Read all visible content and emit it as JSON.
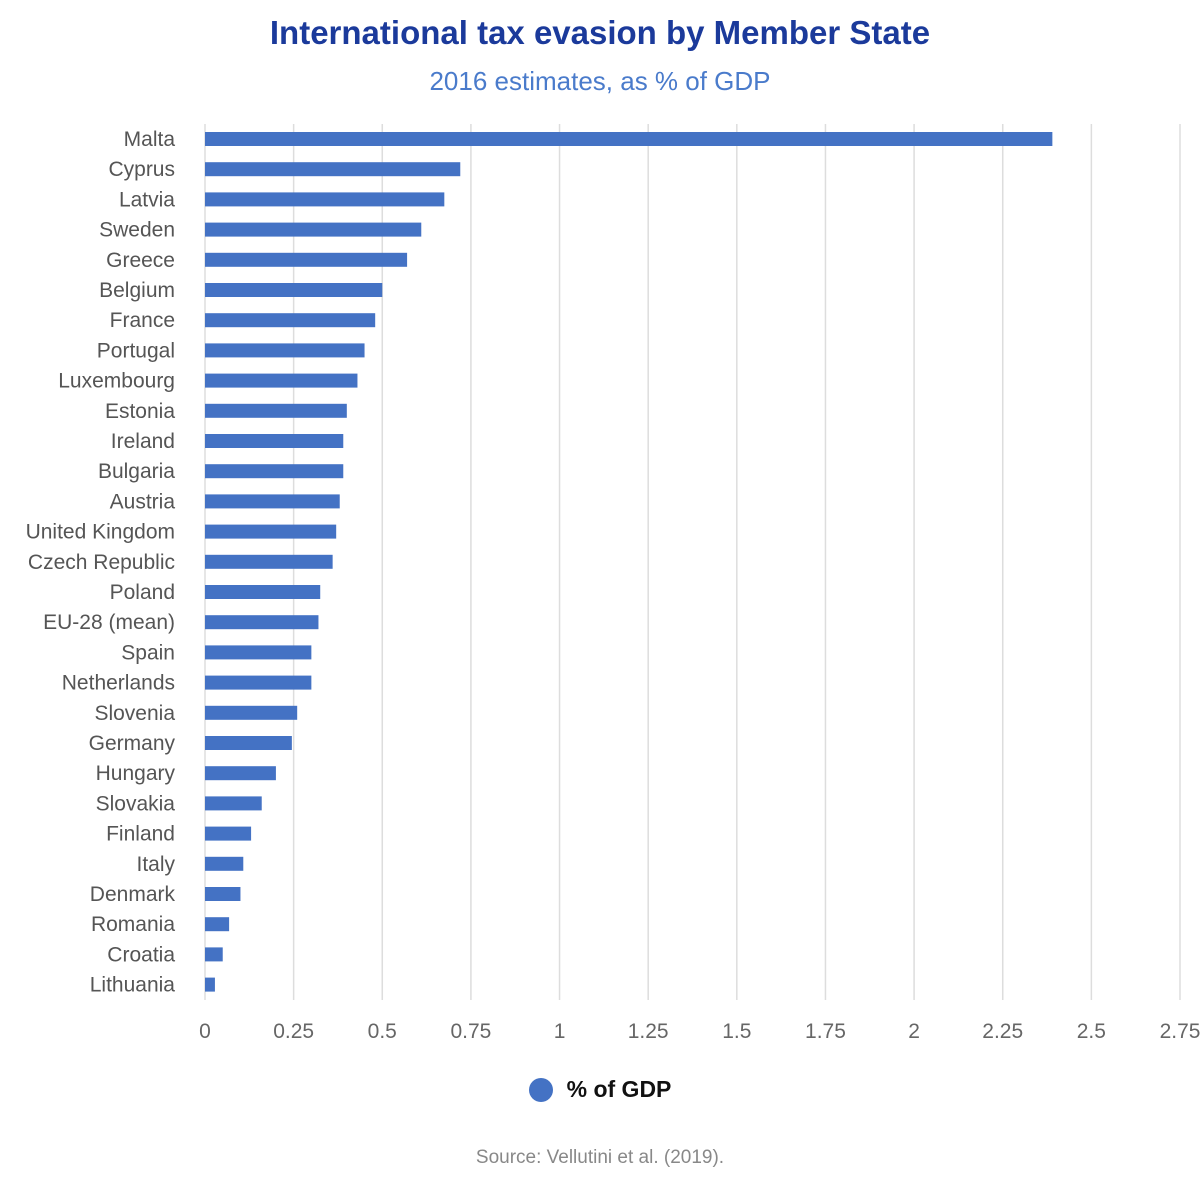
{
  "chart_data": {
    "type": "bar",
    "orientation": "horizontal",
    "title": "International tax evasion by Member State",
    "subtitle": "2016 estimates, as % of GDP",
    "categories": [
      "Malta",
      "Cyprus",
      "Latvia",
      "Sweden",
      "Greece",
      "Belgium",
      "France",
      "Portugal",
      "Luxembourg",
      "Estonia",
      "Ireland",
      "Bulgaria",
      "Austria",
      "United Kingdom",
      "Czech Republic",
      "Poland",
      "EU-28 (mean)",
      "Spain",
      "Netherlands",
      "Slovenia",
      "Germany",
      "Hungary",
      "Slovakia",
      "Finland",
      "Italy",
      "Denmark",
      "Romania",
      "Croatia",
      "Lithuania"
    ],
    "series": [
      {
        "name": "% of GDP",
        "color": "#4472c4",
        "values": [
          2.39,
          0.72,
          0.675,
          0.61,
          0.57,
          0.5,
          0.48,
          0.45,
          0.43,
          0.4,
          0.39,
          0.39,
          0.38,
          0.37,
          0.36,
          0.325,
          0.32,
          0.3,
          0.3,
          0.26,
          0.245,
          0.2,
          0.16,
          0.13,
          0.108,
          0.1,
          0.068,
          0.05,
          0.028
        ]
      }
    ],
    "xlim": [
      0,
      2.75
    ],
    "xticks": [
      "0",
      "0.25",
      "0.5",
      "0.75",
      "1",
      "1.25",
      "1.5",
      "1.75",
      "2",
      "2.25",
      "2.5",
      "2.75"
    ],
    "grid": true,
    "legend": "bottom-center",
    "source": "Source: Vellutini et al. (2019)."
  },
  "colors": {
    "title": "#1b3a9b",
    "subtitle": "#4a7bcb",
    "bar": "#4472c4",
    "grid": "#dddddd",
    "tick_label": "#666666",
    "category_label": "#555555"
  }
}
